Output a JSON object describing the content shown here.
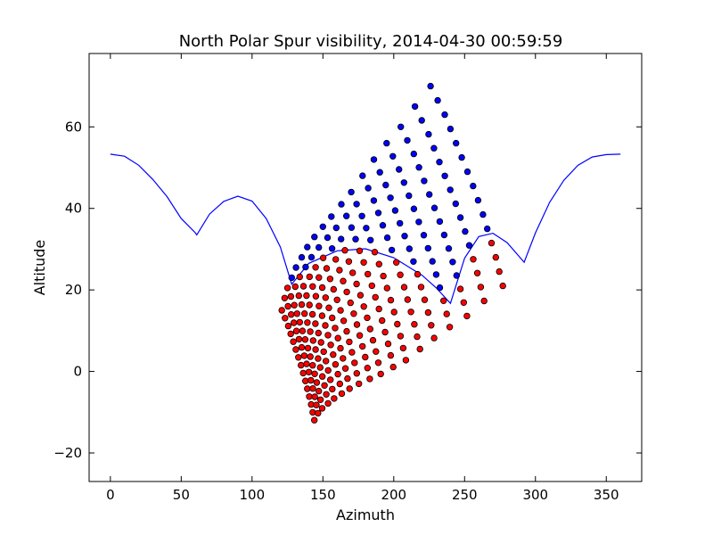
{
  "chart_data": {
    "type": "scatter",
    "title": "North Polar Spur visibility, 2014-04-30 00:59:59",
    "xlabel": "Azimuth",
    "ylabel": "Altitude",
    "xlim": [
      -15,
      375
    ],
    "ylim": [
      -27,
      78
    ],
    "xticks": [
      0,
      50,
      100,
      150,
      200,
      250,
      300,
      350
    ],
    "yticks": [
      -20,
      0,
      20,
      40,
      60
    ],
    "ytick_labels": [
      "−20",
      "0",
      "20",
      "40",
      "60"
    ],
    "grid": false,
    "colors": {
      "visible": "#0000ff",
      "hidden": "#ff0000",
      "line": "#0000ff"
    },
    "horizon_line": {
      "x": [
        0,
        10,
        20,
        30,
        40,
        50,
        60,
        61,
        70,
        80,
        90,
        100,
        110,
        120,
        128,
        140,
        160,
        180,
        200,
        220,
        230,
        240,
        250,
        260,
        270,
        280,
        292,
        300,
        310,
        320,
        330,
        340,
        350,
        360
      ],
      "y": [
        53.3,
        52.8,
        50.6,
        47.1,
        42.9,
        37.5,
        34.0,
        33.5,
        38.6,
        41.7,
        43.0,
        41.8,
        37.5,
        30.5,
        21.4,
        26.5,
        29.6,
        30.1,
        27.9,
        23.6,
        20.5,
        16.7,
        27.8,
        33.1,
        33.9,
        31.6,
        26.8,
        34.0,
        41.5,
        46.9,
        50.6,
        52.6,
        53.2,
        53.3
      ]
    },
    "grid_scatter": {
      "rows": 15,
      "cols": 18,
      "threshold_note": "",
      "base_x": [
        121,
        123,
        125,
        128,
        131,
        135,
        139,
        144,
        150,
        156,
        163,
        170,
        178,
        186,
        195,
        205,
        215,
        226
      ],
      "base_y": [
        15,
        18,
        20.5,
        23,
        25.5,
        28,
        30.5,
        33,
        35.5,
        38,
        41,
        44,
        48,
        52,
        56,
        60,
        65,
        70
      ],
      "row_dx": [
        0,
        5,
        10,
        14,
        18,
        22,
        26,
        30,
        33.5,
        37,
        40,
        43,
        46,
        48.5,
        51
      ],
      "row_dy": [
        0,
        -3.5,
        -7,
        -10.5,
        -14,
        -17.5,
        -21,
        -24.5,
        -28,
        -31.5,
        -35,
        -38.5,
        -42,
        -45.5,
        -49
      ]
    }
  }
}
